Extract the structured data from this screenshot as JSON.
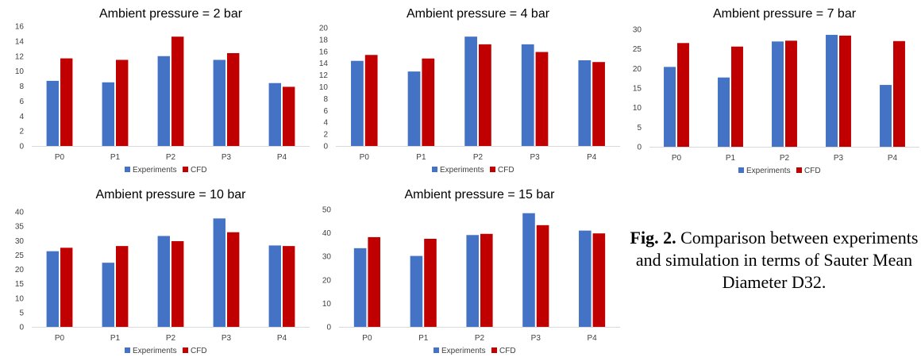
{
  "colors": {
    "experiments": "#4472C4",
    "cfd": "#C00000",
    "axis": "#D9D9D9",
    "tick_text": "#404040"
  },
  "legend": {
    "experiments": "Experiments",
    "cfd": "CFD"
  },
  "caption": {
    "label": "Fig. 2.",
    "text": "Comparison between experiments and simulation in terms of Sauter Mean Diameter D32."
  },
  "chart_data": [
    {
      "type": "bar",
      "title": "Ambient pressure = 2 bar",
      "categories": [
        "P0",
        "P1",
        "P2",
        "P3",
        "P4"
      ],
      "series": [
        {
          "name": "Experiments",
          "values": [
            8.7,
            8.5,
            12.0,
            11.5,
            8.4
          ]
        },
        {
          "name": "CFD",
          "values": [
            11.7,
            11.5,
            14.6,
            12.4,
            7.9
          ]
        }
      ],
      "ylim": [
        0,
        16
      ],
      "yticks": [
        0,
        2,
        4,
        6,
        8,
        10,
        12,
        14,
        16
      ],
      "legend_position": "bottom"
    },
    {
      "type": "bar",
      "title": "Ambient pressure = 4 bar",
      "categories": [
        "P0",
        "P1",
        "P2",
        "P3",
        "P4"
      ],
      "series": [
        {
          "name": "Experiments",
          "values": [
            14.4,
            12.6,
            18.5,
            17.2,
            14.5
          ]
        },
        {
          "name": "CFD",
          "values": [
            15.4,
            14.8,
            17.2,
            15.9,
            14.2
          ]
        }
      ],
      "ylim": [
        0,
        20
      ],
      "yticks": [
        0,
        2,
        4,
        6,
        8,
        10,
        12,
        14,
        16,
        18,
        20
      ],
      "legend_position": "bottom"
    },
    {
      "type": "bar",
      "title": "Ambient pressure = 7 bar",
      "categories": [
        "P0",
        "P1",
        "P2",
        "P3",
        "P4"
      ],
      "series": [
        {
          "name": "Experiments",
          "values": [
            20.4,
            17.7,
            26.9,
            28.6,
            15.8
          ]
        },
        {
          "name": "CFD",
          "values": [
            26.5,
            25.6,
            27.1,
            28.4,
            27.0
          ]
        }
      ],
      "ylim": [
        0,
        30
      ],
      "yticks": [
        0,
        5,
        10,
        15,
        20,
        25,
        30
      ],
      "legend_position": "bottom"
    },
    {
      "type": "bar",
      "title": "Ambient pressure = 10 bar",
      "categories": [
        "P0",
        "P1",
        "P2",
        "P3",
        "P4"
      ],
      "series": [
        {
          "name": "Experiments",
          "values": [
            26.3,
            22.3,
            31.6,
            37.7,
            28.3
          ]
        },
        {
          "name": "CFD",
          "values": [
            27.5,
            28.1,
            29.8,
            32.9,
            28.1
          ]
        }
      ],
      "ylim": [
        0,
        40
      ],
      "yticks": [
        0,
        5,
        10,
        15,
        20,
        25,
        30,
        35,
        40
      ],
      "legend_position": "bottom"
    },
    {
      "type": "bar",
      "title": "Ambient pressure = 15 bar",
      "categories": [
        "P0",
        "P1",
        "P2",
        "P3",
        "P4"
      ],
      "series": [
        {
          "name": "Experiments",
          "values": [
            33.5,
            30.2,
            39.1,
            48.4,
            41.0
          ]
        },
        {
          "name": "CFD",
          "values": [
            38.2,
            37.5,
            39.6,
            43.3,
            39.8
          ]
        }
      ],
      "ylim": [
        0,
        50
      ],
      "yticks": [
        0,
        10,
        20,
        30,
        40,
        50
      ],
      "legend_position": "bottom"
    }
  ]
}
